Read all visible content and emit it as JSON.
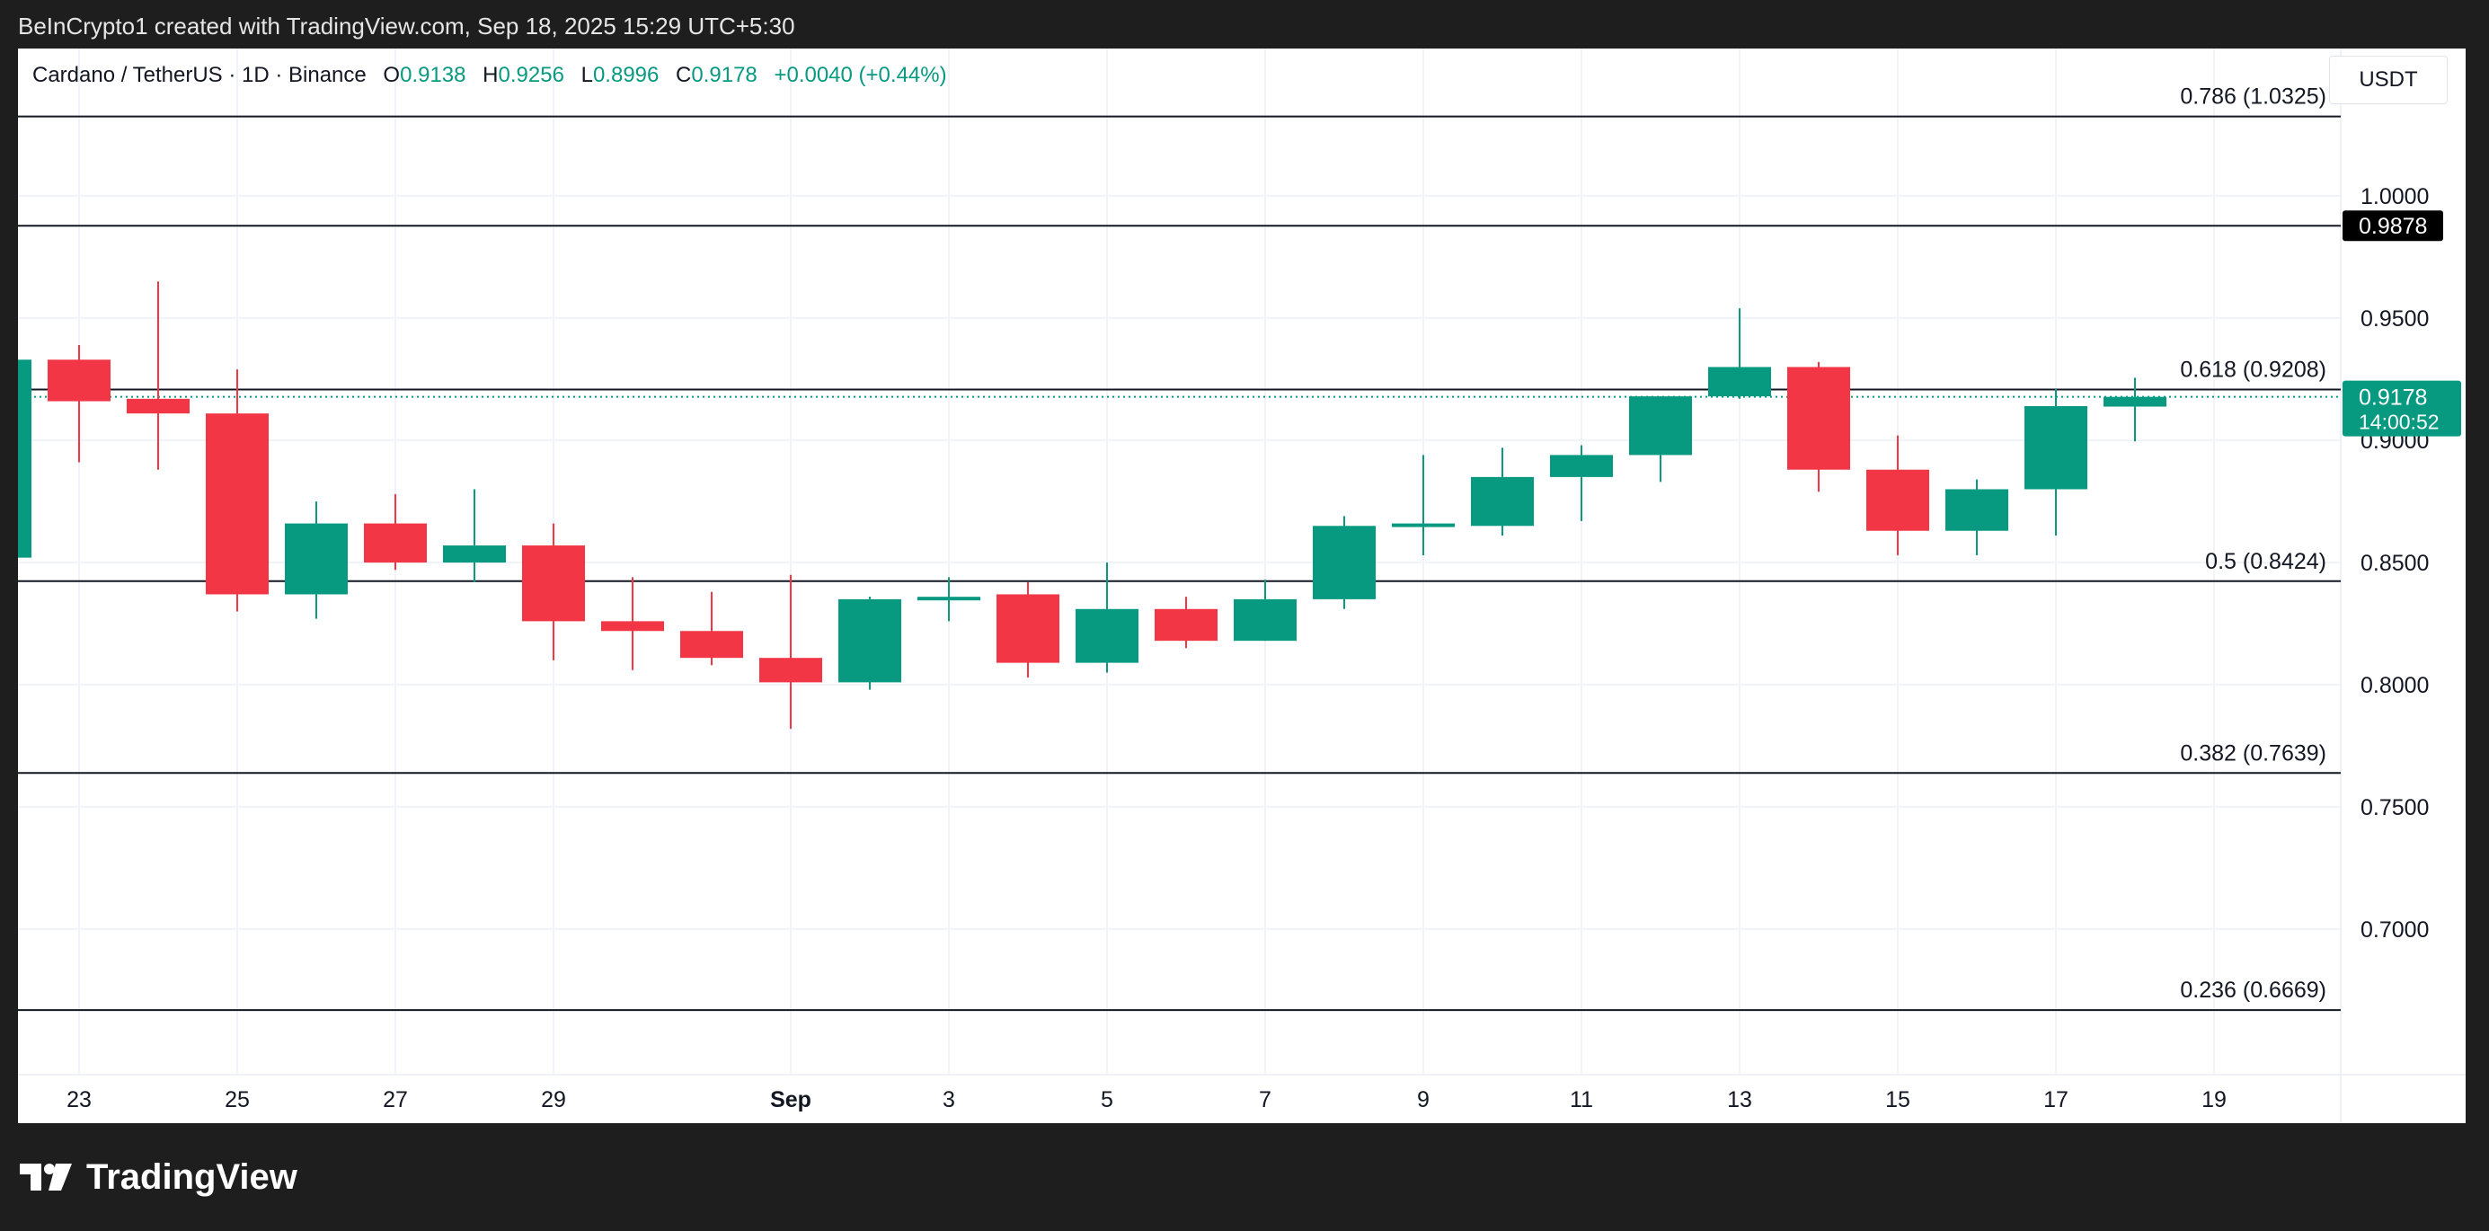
{
  "header": {
    "attribution": "BeInCrypto1 created with TradingView.com, Sep 18, 2025 15:29 UTC+5:30"
  },
  "legend": {
    "symbol": "Cardano / TetherUS · 1D · Binance",
    "o_label": "O",
    "o_value": "0.9138",
    "h_label": "H",
    "h_value": "0.9256",
    "l_label": "L",
    "l_value": "0.8996",
    "c_label": "C",
    "c_value": "0.9178",
    "change": "+0.0040 (+0.44%)"
  },
  "currency_button": "USDT",
  "footer": {
    "logo_text": "TradingView"
  },
  "colors": {
    "up": "#089981",
    "down": "#f23645",
    "grid": "#f0f3fa",
    "line": "#131722"
  },
  "chart_data": {
    "type": "candlestick",
    "title": "Cardano / TetherUS · 1D · Binance",
    "ylim": [
      0.6405,
      1.0603
    ],
    "y_ticks": [
      "1.0000",
      "0.9500",
      "0.9000",
      "0.8500",
      "0.8000",
      "0.7500",
      "0.7000"
    ],
    "x_ticks": [
      {
        "label": "23",
        "day": 23
      },
      {
        "label": "25",
        "day": 25
      },
      {
        "label": "27",
        "day": 27
      },
      {
        "label": "29",
        "day": 29
      },
      {
        "label": "Sep",
        "day": 32,
        "bold": true
      },
      {
        "label": "3",
        "day": 34
      },
      {
        "label": "5",
        "day": 36
      },
      {
        "label": "7",
        "day": 38
      },
      {
        "label": "9",
        "day": 40
      },
      {
        "label": "11",
        "day": 42
      },
      {
        "label": "13",
        "day": 44
      },
      {
        "label": "15",
        "day": 46
      },
      {
        "label": "17",
        "day": 48
      },
      {
        "label": "19",
        "day": 50
      }
    ],
    "candles": [
      {
        "day": 22,
        "o": 0.852,
        "h": 0.933,
        "l": 0.852,
        "c": 0.933
      },
      {
        "day": 23,
        "o": 0.933,
        "h": 0.939,
        "l": 0.891,
        "c": 0.916
      },
      {
        "day": 24,
        "o": 0.917,
        "h": 0.965,
        "l": 0.888,
        "c": 0.911
      },
      {
        "day": 25,
        "o": 0.911,
        "h": 0.929,
        "l": 0.83,
        "c": 0.837
      },
      {
        "day": 26,
        "o": 0.837,
        "h": 0.875,
        "l": 0.827,
        "c": 0.866
      },
      {
        "day": 27,
        "o": 0.866,
        "h": 0.878,
        "l": 0.847,
        "c": 0.85
      },
      {
        "day": 28,
        "o": 0.85,
        "h": 0.88,
        "l": 0.842,
        "c": 0.857
      },
      {
        "day": 29,
        "o": 0.857,
        "h": 0.866,
        "l": 0.81,
        "c": 0.826
      },
      {
        "day": 30,
        "o": 0.826,
        "h": 0.844,
        "l": 0.806,
        "c": 0.822
      },
      {
        "day": 31,
        "o": 0.822,
        "h": 0.838,
        "l": 0.808,
        "c": 0.811
      },
      {
        "day": 32,
        "o": 0.811,
        "h": 0.845,
        "l": 0.782,
        "c": 0.801
      },
      {
        "day": 33,
        "o": 0.801,
        "h": 0.836,
        "l": 0.798,
        "c": 0.835
      },
      {
        "day": 34,
        "o": 0.835,
        "h": 0.844,
        "l": 0.826,
        "c": 0.836
      },
      {
        "day": 35,
        "o": 0.837,
        "h": 0.842,
        "l": 0.803,
        "c": 0.809
      },
      {
        "day": 36,
        "o": 0.809,
        "h": 0.85,
        "l": 0.805,
        "c": 0.831
      },
      {
        "day": 37,
        "o": 0.831,
        "h": 0.836,
        "l": 0.815,
        "c": 0.818
      },
      {
        "day": 38,
        "o": 0.818,
        "h": 0.843,
        "l": 0.818,
        "c": 0.835
      },
      {
        "day": 39,
        "o": 0.835,
        "h": 0.869,
        "l": 0.831,
        "c": 0.865
      },
      {
        "day": 40,
        "o": 0.865,
        "h": 0.894,
        "l": 0.853,
        "c": 0.866
      },
      {
        "day": 41,
        "o": 0.865,
        "h": 0.897,
        "l": 0.861,
        "c": 0.885
      },
      {
        "day": 42,
        "o": 0.885,
        "h": 0.898,
        "l": 0.867,
        "c": 0.894
      },
      {
        "day": 43,
        "o": 0.894,
        "h": 0.918,
        "l": 0.883,
        "c": 0.918
      },
      {
        "day": 44,
        "o": 0.918,
        "h": 0.954,
        "l": 0.917,
        "c": 0.93
      },
      {
        "day": 45,
        "o": 0.93,
        "h": 0.932,
        "l": 0.879,
        "c": 0.888
      },
      {
        "day": 46,
        "o": 0.888,
        "h": 0.902,
        "l": 0.853,
        "c": 0.863
      },
      {
        "day": 47,
        "o": 0.863,
        "h": 0.884,
        "l": 0.853,
        "c": 0.88
      },
      {
        "day": 48,
        "o": 0.88,
        "h": 0.921,
        "l": 0.861,
        "c": 0.914
      },
      {
        "day": 49,
        "o": 0.9138,
        "h": 0.9256,
        "l": 0.8996,
        "c": 0.9178
      }
    ],
    "horizontal_lines": [
      {
        "label": "0.786 (1.0325)",
        "value": 1.0325
      },
      {
        "label": "",
        "value": 0.9878
      },
      {
        "label": "0.618 (0.9208)",
        "value": 0.9208
      },
      {
        "label": "0.5 (0.8424)",
        "value": 0.8424
      },
      {
        "label": "0.382 (0.7639)",
        "value": 0.7639
      },
      {
        "label": "0.236 (0.6669)",
        "value": 0.6669
      }
    ],
    "last_price": {
      "value": 0.9178,
      "label": "0.9178",
      "countdown": "14:00:52"
    },
    "highlight_price": {
      "value": 0.9878,
      "label": "0.9878"
    }
  }
}
